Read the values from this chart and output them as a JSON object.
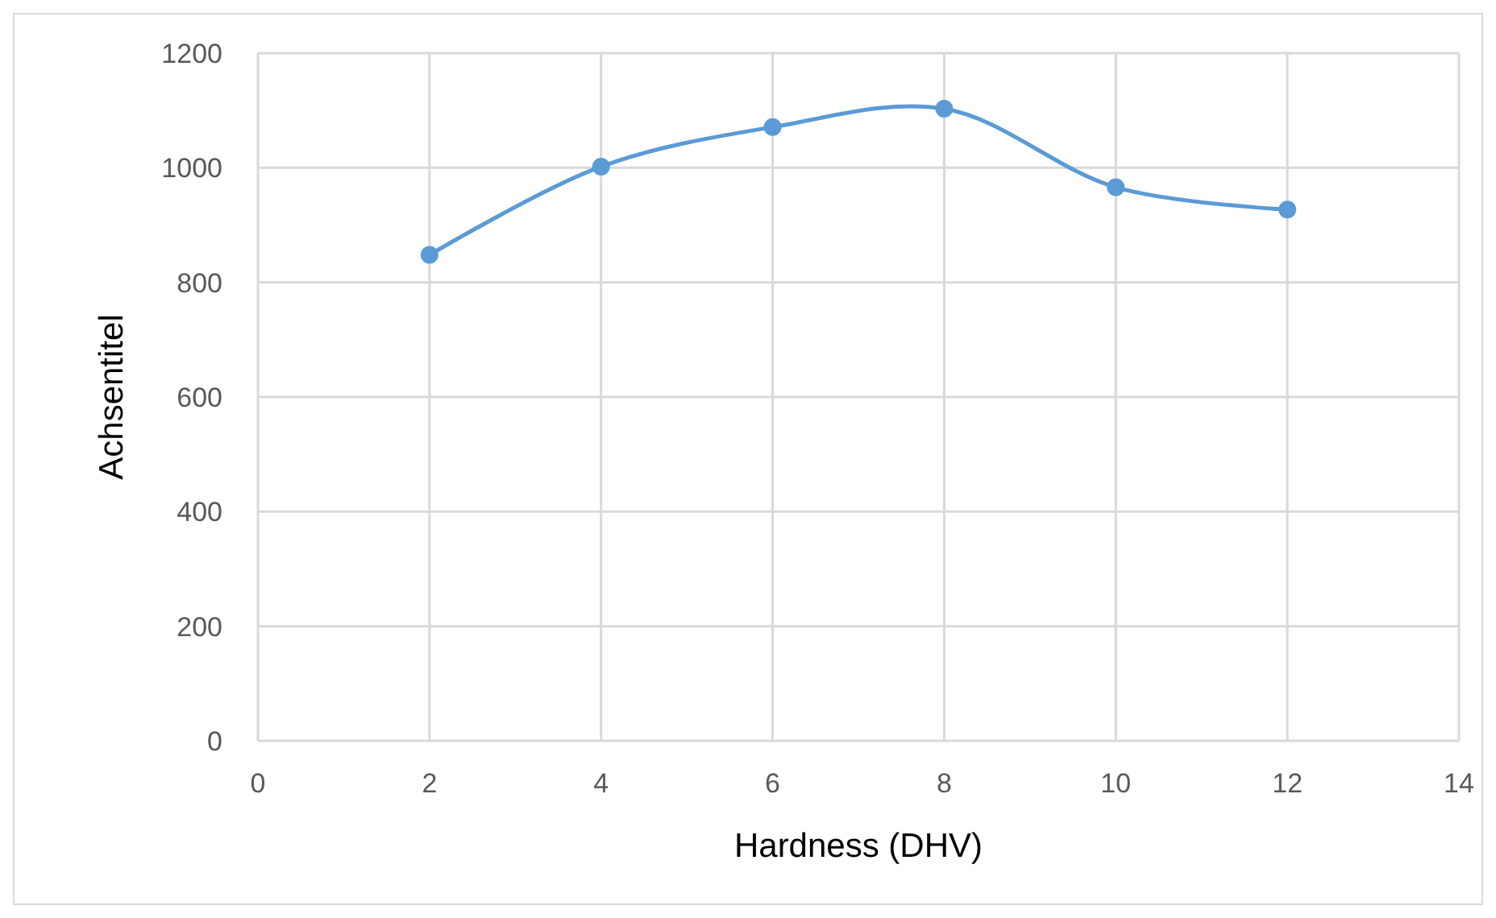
{
  "chart_data": {
    "type": "line",
    "xlabel": "Hardness (DHV)",
    "ylabel": "Achsentitel",
    "x": [
      2,
      4,
      6,
      8,
      10,
      12
    ],
    "series": [
      {
        "color": "#5b9bd5",
        "values": [
          848,
          1002,
          1071,
          1103,
          966,
          927
        ]
      }
    ],
    "xlim": [
      0,
      14
    ],
    "xticks": [
      0,
      2,
      4,
      6,
      8,
      10,
      12,
      14
    ],
    "ylim": [
      0,
      1200
    ],
    "yticks": [
      0,
      200,
      400,
      600,
      800,
      1000,
      1200
    ],
    "grid": true,
    "marker": "circle",
    "line_style": "solid"
  }
}
